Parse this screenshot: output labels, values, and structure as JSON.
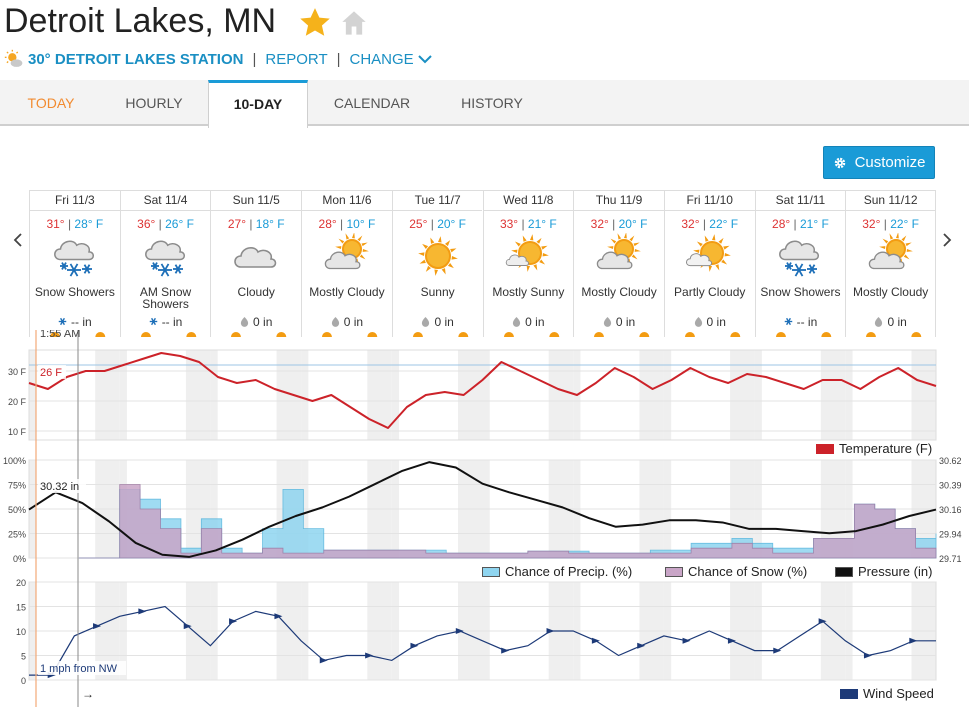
{
  "header": {
    "city": "Detroit Lakes, MN",
    "station_temp": "30°",
    "station_name": "DETROIT LAKES STATION",
    "report_label": "REPORT",
    "change_label": "CHANGE",
    "separator": "|",
    "star_icon": "star-icon",
    "home_icon": "home-icon"
  },
  "tabs": [
    "TODAY",
    "HOURLY",
    "10-DAY",
    "CALENDAR",
    "HISTORY"
  ],
  "customize_label": "Customize",
  "days": [
    {
      "date": "Fri 11/3",
      "hi": "31°",
      "lo": "28° F",
      "cond": "Snow Showers",
      "icon": "snow",
      "precip": "-- in"
    },
    {
      "date": "Sat 11/4",
      "hi": "36°",
      "lo": "26° F",
      "cond": "AM Snow Showers",
      "icon": "snow",
      "precip": "-- in"
    },
    {
      "date": "Sun 11/5",
      "hi": "27°",
      "lo": "18° F",
      "cond": "Cloudy",
      "icon": "cloudy",
      "precip": "0 in"
    },
    {
      "date": "Mon 11/6",
      "hi": "28°",
      "lo": "10° F",
      "cond": "Mostly Cloudy",
      "icon": "mostly-cloudy",
      "precip": "0 in"
    },
    {
      "date": "Tue 11/7",
      "hi": "25°",
      "lo": "20° F",
      "cond": "Sunny",
      "icon": "sunny",
      "precip": "0 in"
    },
    {
      "date": "Wed 11/8",
      "hi": "33°",
      "lo": "21° F",
      "cond": "Mostly Sunny",
      "icon": "mostly-sunny",
      "precip": "0 in"
    },
    {
      "date": "Thu 11/9",
      "hi": "32°",
      "lo": "20° F",
      "cond": "Mostly Cloudy",
      "icon": "mostly-cloudy",
      "precip": "0 in"
    },
    {
      "date": "Fri 11/10",
      "hi": "32°",
      "lo": "22° F",
      "cond": "Partly Cloudy",
      "icon": "partly-cloudy",
      "precip": "0 in"
    },
    {
      "date": "Sat 11/11",
      "hi": "28°",
      "lo": "21° F",
      "cond": "Snow Showers",
      "icon": "snow",
      "precip": "-- in"
    },
    {
      "date": "Sun 11/12",
      "hi": "32°",
      "lo": "22° F",
      "cond": "Mostly Cloudy",
      "icon": "mostly-cloudy",
      "precip": "0 in"
    }
  ],
  "chart": {
    "cursor_time": "1:55 AM",
    "temp_marker": "26 F",
    "pressure_marker": "30.32 in",
    "wind_marker": "1 mph from NW",
    "temp_ticks": [
      "30 F",
      "20 F",
      "10 F"
    ],
    "pct_ticks": [
      "100%",
      "75%",
      "50%",
      "25%",
      "0%"
    ],
    "pressure_ticks": [
      "30.62",
      "30.39",
      "30.16",
      "29.94",
      "29.71"
    ],
    "wind_ticks": [
      "20",
      "15",
      "10",
      "5",
      "0"
    ],
    "legend": {
      "temperature": "Temperature (F)",
      "precip": "Chance of Precip. (%)",
      "snow": "Chance of Snow (%)",
      "pressure": "Pressure (in)",
      "wind": "Wind Speed"
    },
    "arrow_glyph": "→"
  },
  "colors": {
    "accent": "#1a9bd7",
    "today_tab": "#f28b30",
    "temp_line": "#cc2229",
    "precip_fill": "#8fd5f0",
    "snow_fill": "#c9a5c7",
    "wind_line": "#1d3a78",
    "pressure_line": "#111111"
  },
  "chart_data": {
    "type": "line",
    "x": [
      "Fri 11/3",
      "Sat 11/4",
      "Sun 11/5",
      "Mon 11/6",
      "Tue 11/7",
      "Wed 11/8",
      "Thu 11/9",
      "Fri 11/10",
      "Sat 11/11",
      "Sun 11/12"
    ],
    "temperature_f": [
      26,
      24,
      28,
      30,
      30,
      32,
      34,
      36,
      35,
      33,
      28,
      26,
      27,
      24,
      22,
      20,
      22,
      18,
      14,
      11,
      18,
      22,
      23,
      22,
      27,
      33,
      30,
      27,
      24,
      22,
      26,
      31,
      28,
      24,
      27,
      31,
      28,
      26,
      29,
      28,
      26,
      24,
      27,
      27,
      24,
      28,
      31,
      27,
      25
    ],
    "chance_precip_pct": [
      0,
      0,
      70,
      60,
      40,
      10,
      40,
      10,
      5,
      30,
      70,
      30,
      8,
      8,
      8,
      8,
      8,
      8,
      5,
      5,
      5,
      5,
      7,
      7,
      7,
      5,
      5,
      5,
      8,
      8,
      15,
      15,
      20,
      15,
      10,
      10,
      20,
      20,
      55,
      50,
      30,
      20,
      25
    ],
    "chance_snow_pct": [
      0,
      0,
      75,
      50,
      30,
      5,
      30,
      5,
      5,
      10,
      5,
      5,
      8,
      8,
      8,
      8,
      8,
      5,
      5,
      5,
      5,
      5,
      7,
      7,
      5,
      5,
      5,
      5,
      5,
      5,
      10,
      10,
      15,
      10,
      5,
      5,
      20,
      20,
      55,
      50,
      30,
      10,
      5
    ],
    "pressure_in": [
      30.16,
      30.32,
      30.22,
      30.05,
      29.85,
      29.74,
      29.72,
      29.78,
      29.88,
      30.0,
      30.1,
      30.18,
      30.28,
      30.4,
      30.52,
      30.6,
      30.55,
      30.4,
      30.32,
      30.25,
      30.18,
      30.08,
      30.0,
      30.02,
      30.06,
      30.06,
      30.04,
      29.98,
      29.98,
      29.96,
      29.94,
      29.96,
      30.02,
      30.1,
      30.16
    ],
    "wind_mph": [
      1,
      1,
      9,
      11,
      13,
      14,
      15,
      11,
      7,
      12,
      14,
      13,
      8,
      4,
      5,
      5,
      4,
      7,
      9,
      10,
      8,
      6,
      7,
      10,
      10,
      8,
      5,
      7,
      9,
      8,
      10,
      8,
      6,
      6,
      9,
      12,
      8,
      5,
      6,
      8,
      8
    ],
    "ylim_temp": [
      10,
      36
    ],
    "ylim_pct": [
      0,
      100
    ],
    "ylim_pressure": [
      29.71,
      30.62
    ],
    "ylim_wind": [
      0,
      20
    ],
    "grid": true,
    "legend_position": "bottom-right"
  }
}
